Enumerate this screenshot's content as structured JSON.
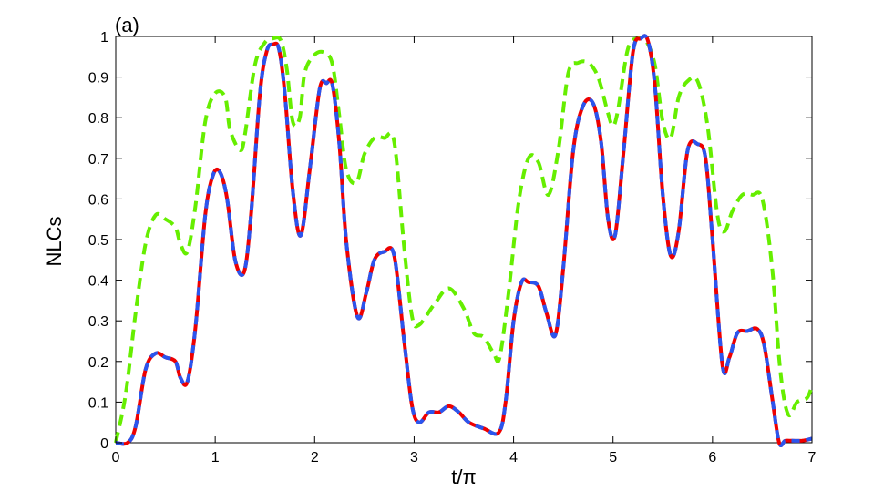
{
  "panel_label": "(a)",
  "chart_data": {
    "type": "line",
    "title": "",
    "xlabel": "t/π",
    "ylabel": "NLCs",
    "xlim": [
      0,
      7
    ],
    "ylim": [
      0,
      1
    ],
    "xticks": [
      0,
      1,
      2,
      3,
      4,
      5,
      6,
      7
    ],
    "yticks": [
      0,
      0.1,
      0.2,
      0.3,
      0.4,
      0.5,
      0.6,
      0.7,
      0.8,
      0.9,
      1
    ],
    "xtick_labels": [
      "0",
      "1",
      "2",
      "3",
      "4",
      "5",
      "6",
      "7"
    ],
    "ytick_labels": [
      "0",
      "0.1",
      "0.2",
      "0.3",
      "0.4",
      "0.5",
      "0.6",
      "0.7",
      "0.8",
      "0.9",
      "1"
    ],
    "grid": false,
    "legend": "none",
    "series": [
      {
        "color": "#66ee00",
        "style": "dashed",
        "x": [
          0,
          0.1,
          0.2,
          0.3,
          0.4,
          0.5,
          0.6,
          0.65,
          0.72,
          0.8,
          0.9,
          1.0,
          1.1,
          1.15,
          1.25,
          1.3,
          1.4,
          1.5,
          1.58,
          1.66,
          1.72,
          1.78,
          1.85,
          1.9,
          2.0,
          2.1,
          2.18,
          2.25,
          2.32,
          2.42,
          2.5,
          2.6,
          2.7,
          2.8,
          2.9,
          2.98,
          3.05,
          3.2,
          3.35,
          3.5,
          3.6,
          3.7,
          3.8,
          3.86,
          3.95,
          4.05,
          4.15,
          4.25,
          4.35,
          4.45,
          4.55,
          4.65,
          4.75,
          4.85,
          4.95,
          5.0,
          5.05,
          5.15,
          5.25,
          5.33,
          5.42,
          5.5,
          5.58,
          5.66,
          5.75,
          5.85,
          5.95,
          6.05,
          6.12,
          6.2,
          6.3,
          6.4,
          6.5,
          6.6,
          6.68,
          6.76,
          6.85,
          6.95,
          7.0
        ],
        "y": [
          0,
          0.12,
          0.32,
          0.49,
          0.56,
          0.55,
          0.53,
          0.49,
          0.47,
          0.58,
          0.79,
          0.86,
          0.85,
          0.77,
          0.72,
          0.76,
          0.93,
          0.985,
          0.995,
          0.99,
          0.92,
          0.79,
          0.8,
          0.91,
          0.955,
          0.96,
          0.93,
          0.8,
          0.67,
          0.64,
          0.71,
          0.75,
          0.75,
          0.74,
          0.48,
          0.31,
          0.29,
          0.34,
          0.38,
          0.33,
          0.27,
          0.26,
          0.22,
          0.21,
          0.37,
          0.59,
          0.7,
          0.69,
          0.61,
          0.72,
          0.91,
          0.935,
          0.935,
          0.9,
          0.81,
          0.78,
          0.82,
          0.97,
          0.995,
          0.99,
          0.93,
          0.79,
          0.75,
          0.85,
          0.89,
          0.89,
          0.78,
          0.56,
          0.52,
          0.57,
          0.61,
          0.61,
          0.6,
          0.43,
          0.18,
          0.07,
          0.1,
          0.11,
          0.14
        ]
      },
      {
        "color": "#ee0000",
        "style": "solid",
        "x": [
          0,
          0.12,
          0.2,
          0.3,
          0.4,
          0.5,
          0.6,
          0.65,
          0.72,
          0.8,
          0.9,
          0.98,
          1.05,
          1.12,
          1.2,
          1.29,
          1.36,
          1.45,
          1.52,
          1.58,
          1.64,
          1.7,
          1.78,
          1.86,
          1.95,
          2.05,
          2.12,
          2.18,
          2.25,
          2.32,
          2.43,
          2.52,
          2.6,
          2.7,
          2.8,
          2.9,
          2.98,
          3.05,
          3.15,
          3.25,
          3.35,
          3.45,
          3.55,
          3.7,
          3.85,
          3.92,
          4.0,
          4.08,
          4.15,
          4.25,
          4.33,
          4.42,
          4.5,
          4.6,
          4.7,
          4.8,
          4.88,
          4.95,
          5.02,
          5.1,
          5.2,
          5.28,
          5.35,
          5.42,
          5.5,
          5.58,
          5.66,
          5.75,
          5.85,
          5.93,
          6.0,
          6.1,
          6.17,
          6.25,
          6.35,
          6.45,
          6.52,
          6.6,
          6.67,
          6.73,
          6.8,
          6.9,
          7.0
        ],
        "y": [
          0,
          0.0,
          0.04,
          0.18,
          0.22,
          0.21,
          0.2,
          0.16,
          0.15,
          0.28,
          0.56,
          0.66,
          0.665,
          0.6,
          0.45,
          0.42,
          0.56,
          0.86,
          0.965,
          0.98,
          0.97,
          0.86,
          0.62,
          0.51,
          0.67,
          0.87,
          0.885,
          0.88,
          0.73,
          0.49,
          0.31,
          0.37,
          0.45,
          0.47,
          0.46,
          0.25,
          0.09,
          0.05,
          0.075,
          0.075,
          0.09,
          0.075,
          0.05,
          0.035,
          0.025,
          0.1,
          0.3,
          0.395,
          0.395,
          0.385,
          0.32,
          0.265,
          0.43,
          0.72,
          0.83,
          0.835,
          0.74,
          0.55,
          0.51,
          0.7,
          0.96,
          0.995,
          0.99,
          0.88,
          0.61,
          0.46,
          0.52,
          0.72,
          0.735,
          0.7,
          0.5,
          0.19,
          0.21,
          0.27,
          0.275,
          0.28,
          0.24,
          0.11,
          0.0,
          0.005,
          0.005,
          0.005,
          0.01
        ]
      },
      {
        "color": "#2a55ee",
        "style": "dashed",
        "x": [
          0,
          0.12,
          0.2,
          0.3,
          0.4,
          0.5,
          0.6,
          0.65,
          0.72,
          0.8,
          0.9,
          0.98,
          1.05,
          1.12,
          1.2,
          1.29,
          1.36,
          1.45,
          1.52,
          1.58,
          1.64,
          1.7,
          1.78,
          1.86,
          1.95,
          2.05,
          2.12,
          2.18,
          2.25,
          2.32,
          2.43,
          2.52,
          2.6,
          2.7,
          2.8,
          2.9,
          2.98,
          3.05,
          3.15,
          3.25,
          3.35,
          3.45,
          3.55,
          3.7,
          3.85,
          3.92,
          4.0,
          4.08,
          4.15,
          4.25,
          4.33,
          4.42,
          4.5,
          4.6,
          4.7,
          4.8,
          4.88,
          4.95,
          5.02,
          5.1,
          5.2,
          5.28,
          5.35,
          5.42,
          5.5,
          5.58,
          5.66,
          5.75,
          5.85,
          5.93,
          6.0,
          6.1,
          6.17,
          6.25,
          6.35,
          6.45,
          6.52,
          6.6,
          6.67,
          6.73,
          6.8,
          6.9,
          7.0
        ],
        "y": [
          0,
          0.0,
          0.04,
          0.18,
          0.22,
          0.21,
          0.2,
          0.16,
          0.15,
          0.28,
          0.56,
          0.66,
          0.665,
          0.6,
          0.45,
          0.42,
          0.56,
          0.86,
          0.965,
          0.98,
          0.97,
          0.86,
          0.62,
          0.51,
          0.67,
          0.87,
          0.885,
          0.88,
          0.73,
          0.49,
          0.31,
          0.37,
          0.45,
          0.47,
          0.46,
          0.25,
          0.09,
          0.05,
          0.075,
          0.075,
          0.09,
          0.075,
          0.05,
          0.035,
          0.025,
          0.1,
          0.3,
          0.395,
          0.395,
          0.385,
          0.32,
          0.265,
          0.43,
          0.72,
          0.83,
          0.835,
          0.74,
          0.55,
          0.51,
          0.7,
          0.96,
          0.995,
          0.99,
          0.88,
          0.61,
          0.46,
          0.52,
          0.72,
          0.735,
          0.7,
          0.5,
          0.19,
          0.21,
          0.27,
          0.275,
          0.28,
          0.24,
          0.11,
          0.0,
          0.005,
          0.005,
          0.005,
          0.01
        ]
      }
    ]
  }
}
